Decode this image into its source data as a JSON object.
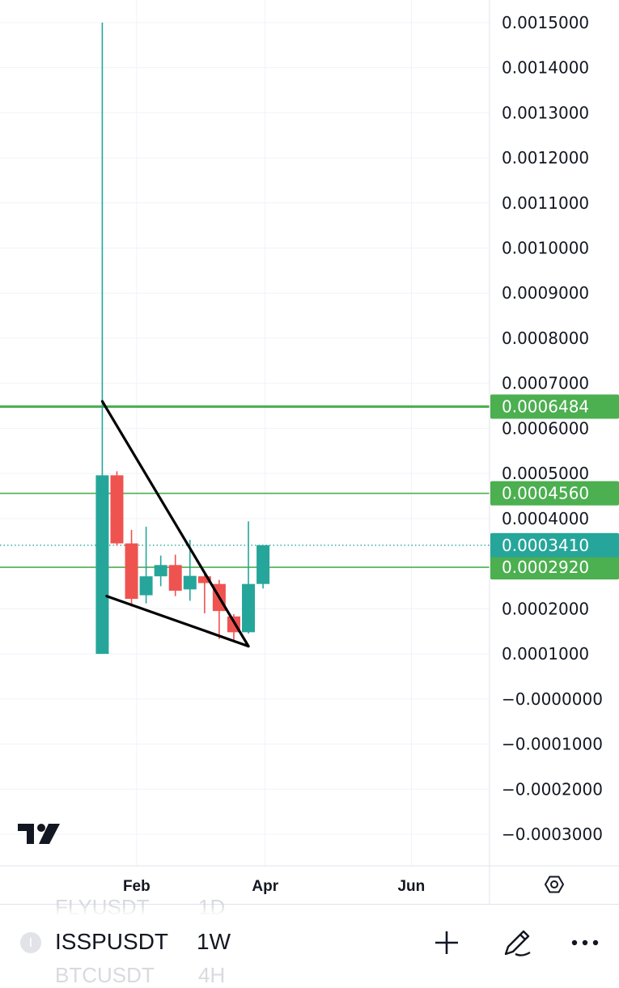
{
  "chart_data": {
    "type": "candlestick",
    "symbol": "ISSPUSDT",
    "interval": "1W",
    "y_ticks": [
      "0.0015000",
      "0.0014000",
      "0.0013000",
      "0.0012000",
      "0.0011000",
      "0.0010000",
      "0.0009000",
      "0.0008000",
      "0.0007000",
      "0.0006000",
      "0.0005000",
      "0.0004000",
      "0.0002000",
      "0.0001000",
      "−0.0000000",
      "−0.0001000",
      "−0.0002000",
      "−0.0003000"
    ],
    "y_tick_values": [
      0.0015,
      0.0014,
      0.0013,
      0.0012,
      0.0011,
      0.001,
      0.0009,
      0.0008,
      0.0007,
      0.0006,
      0.0005,
      0.0004,
      0.0002,
      0.0001,
      0,
      -0.0001,
      -0.0002,
      -0.0003
    ],
    "ylim": [
      -0.00037,
      0.00155
    ],
    "x_ticks": [
      "Feb",
      "Apr",
      "Jun"
    ],
    "x_tick_weeks": [
      2.35,
      11.15,
      21.15
    ],
    "xlim": [
      -7.0,
      26.5
    ],
    "candles": [
      {
        "o": 0.0001,
        "h": 0.0015,
        "l": 0.0001,
        "c": 0.000496
      },
      {
        "o": 0.000496,
        "h": 0.000505,
        "l": 0.00034,
        "c": 0.000345
      },
      {
        "o": 0.000345,
        "h": 0.000375,
        "l": 0.000205,
        "c": 0.000222
      },
      {
        "o": 0.00023,
        "h": 0.000382,
        "l": 0.000212,
        "c": 0.000272
      },
      {
        "o": 0.000272,
        "h": 0.000318,
        "l": 0.00025,
        "c": 0.000297
      },
      {
        "o": 0.000297,
        "h": 0.00032,
        "l": 0.000228,
        "c": 0.00024
      },
      {
        "o": 0.000243,
        "h": 0.000353,
        "l": 0.000218,
        "c": 0.000273
      },
      {
        "o": 0.000272,
        "h": 0.000282,
        "l": 0.00019,
        "c": 0.000257
      },
      {
        "o": 0.000255,
        "h": 0.000264,
        "l": 0.000133,
        "c": 0.000195
      },
      {
        "o": 0.000183,
        "h": 0.000188,
        "l": 0.000128,
        "c": 0.000148
      },
      {
        "o": 0.000148,
        "h": 0.000394,
        "l": 0.000145,
        "c": 0.000255
      },
      {
        "o": 0.000255,
        "h": 0.000341,
        "l": 0.000245,
        "c": 0.000341
      }
    ],
    "horizontal_levels": [
      {
        "value": 0.0006484,
        "label": "0.0006484",
        "thick": true
      },
      {
        "value": 0.000456,
        "label": "0.0004560",
        "thick": false
      },
      {
        "value": 0.000292,
        "label": "0.0002920",
        "thick": false
      }
    ],
    "last_price": {
      "value": 0.000341,
      "label": "0.0003410"
    },
    "trendlines": [
      {
        "from": [
          0.0,
          0.00066
        ],
        "to": [
          10.0,
          0.000117
        ]
      },
      {
        "from": [
          0.3,
          0.000228
        ],
        "to": [
          10.0,
          0.000117
        ]
      }
    ],
    "colors": {
      "up": "#26a69a",
      "down": "#ef5350",
      "level": "#4caf50",
      "last": "#26a69a",
      "wick_up": "#26a69a",
      "wick_down": "#ef5350",
      "trendline": "#000000"
    }
  },
  "ghost_rows": {
    "above_symbol": "FLYUSDT",
    "above_interval": "1D",
    "below_symbol": "BTCUSDT",
    "below_interval": "4H"
  },
  "symbol_bar": {
    "badge": "I",
    "symbol": "ISSPUSDT",
    "interval": "1W"
  },
  "icons": [
    "tradingview-logo-icon",
    "settings-hexagon-icon",
    "plus-icon",
    "pencil-icon",
    "more-icon"
  ]
}
